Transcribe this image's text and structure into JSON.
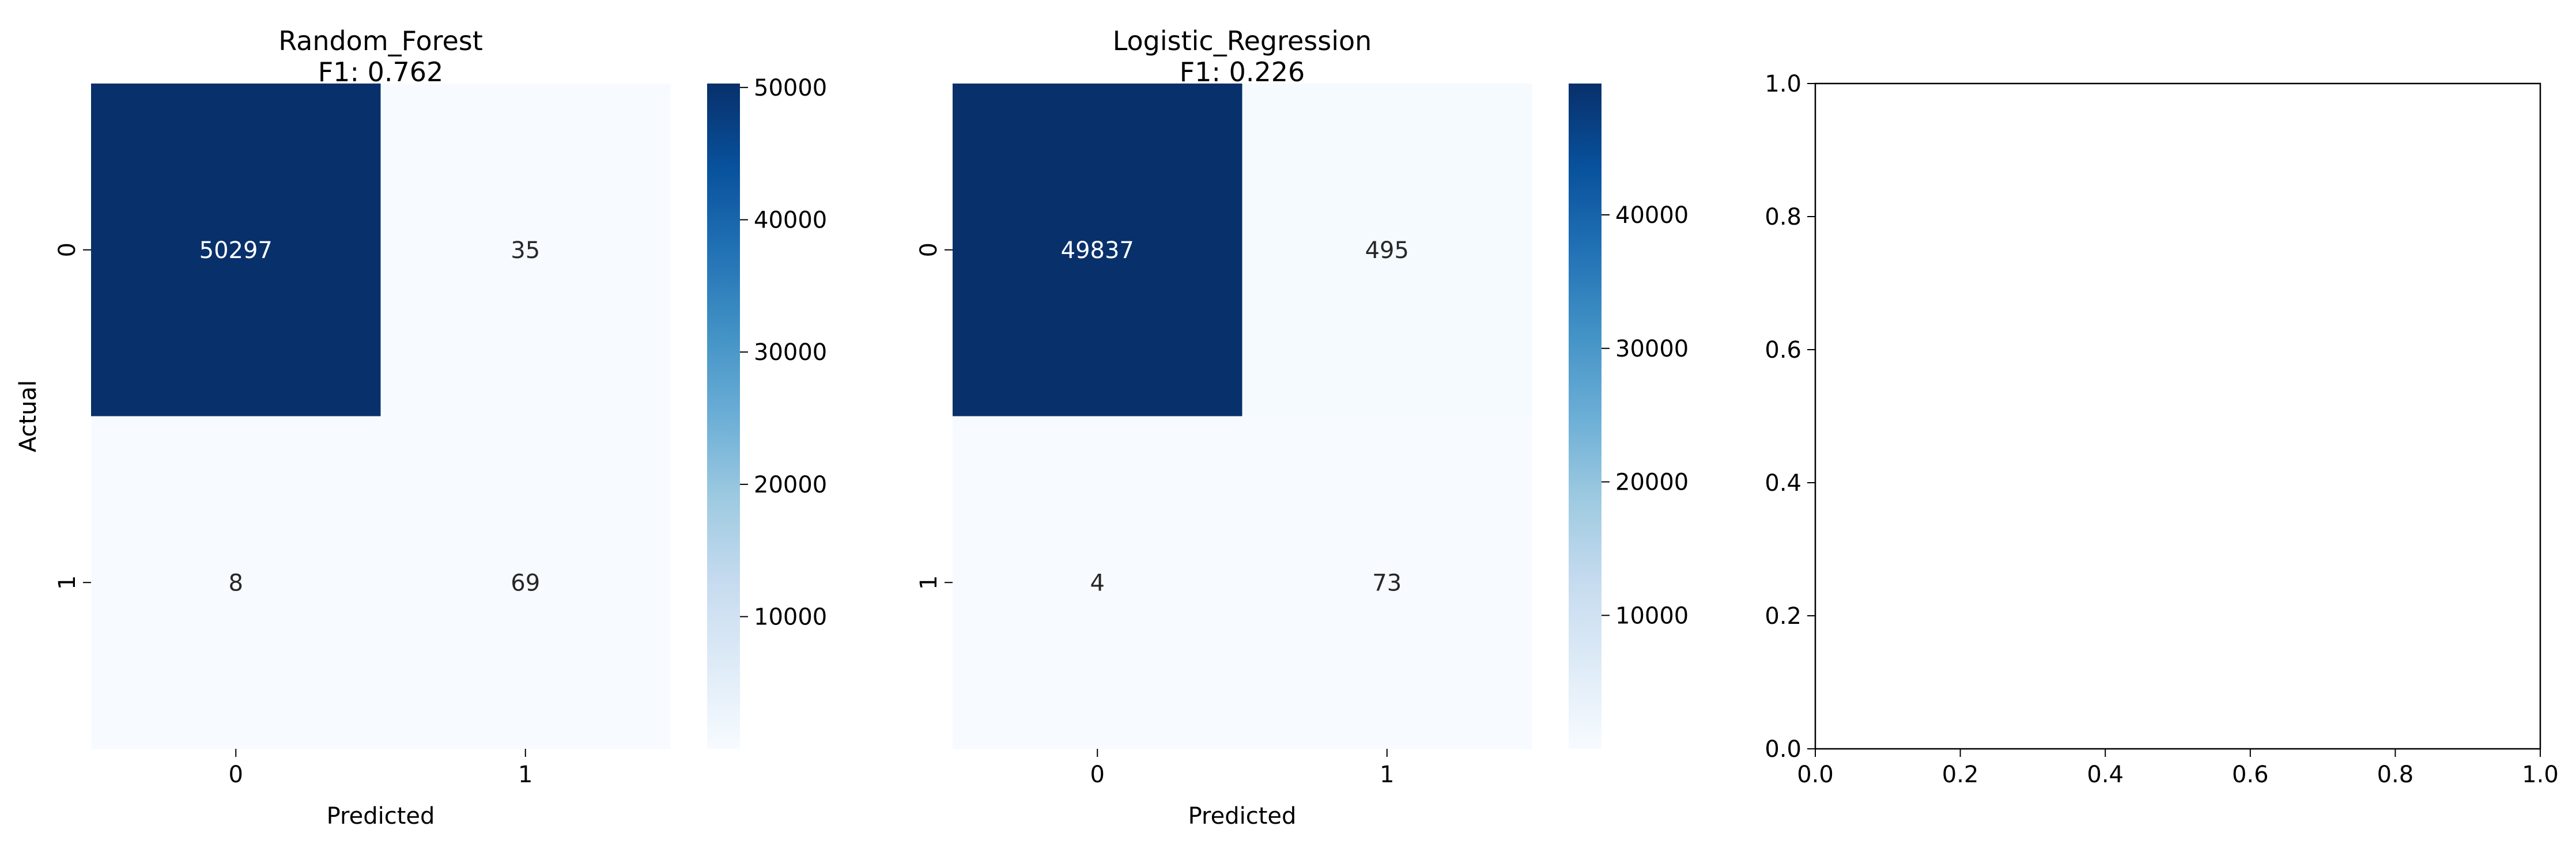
{
  "figure": {
    "background": "#ffffff"
  },
  "chart_data": [
    {
      "type": "heatmap",
      "title": "Random_Forest\nF1: 0.762",
      "xlabel": "Predicted",
      "ylabel": "Actual",
      "x_categories": [
        "0",
        "1"
      ],
      "y_categories": [
        "0",
        "1"
      ],
      "values": [
        [
          50297,
          35
        ],
        [
          8,
          69
        ]
      ],
      "colormap": "Blues",
      "color_range": [
        8,
        50297
      ],
      "colorbar_ticks": [
        "10000",
        "20000",
        "30000",
        "40000",
        "50000"
      ]
    },
    {
      "type": "heatmap",
      "title": "Logistic_Regression\nF1: 0.226",
      "xlabel": "Predicted",
      "ylabel": "Actual",
      "x_categories": [
        "0",
        "1"
      ],
      "y_categories": [
        "0",
        "1"
      ],
      "values": [
        [
          49837,
          495
        ],
        [
          4,
          73
        ]
      ],
      "colormap": "Blues",
      "color_range": [
        4,
        49837
      ],
      "colorbar_ticks": [
        "10000",
        "20000",
        "30000",
        "40000"
      ]
    },
    {
      "type": "scatter",
      "title": "",
      "xlabel": "",
      "ylabel": "",
      "series": [],
      "xlim": [
        0.0,
        1.0
      ],
      "ylim": [
        0.0,
        1.0
      ],
      "x_ticks": [
        "0.0",
        "0.2",
        "0.4",
        "0.6",
        "0.8",
        "1.0"
      ],
      "y_ticks": [
        "0.0",
        "0.2",
        "0.4",
        "0.6",
        "0.8",
        "1.0"
      ],
      "grid": false
    }
  ]
}
